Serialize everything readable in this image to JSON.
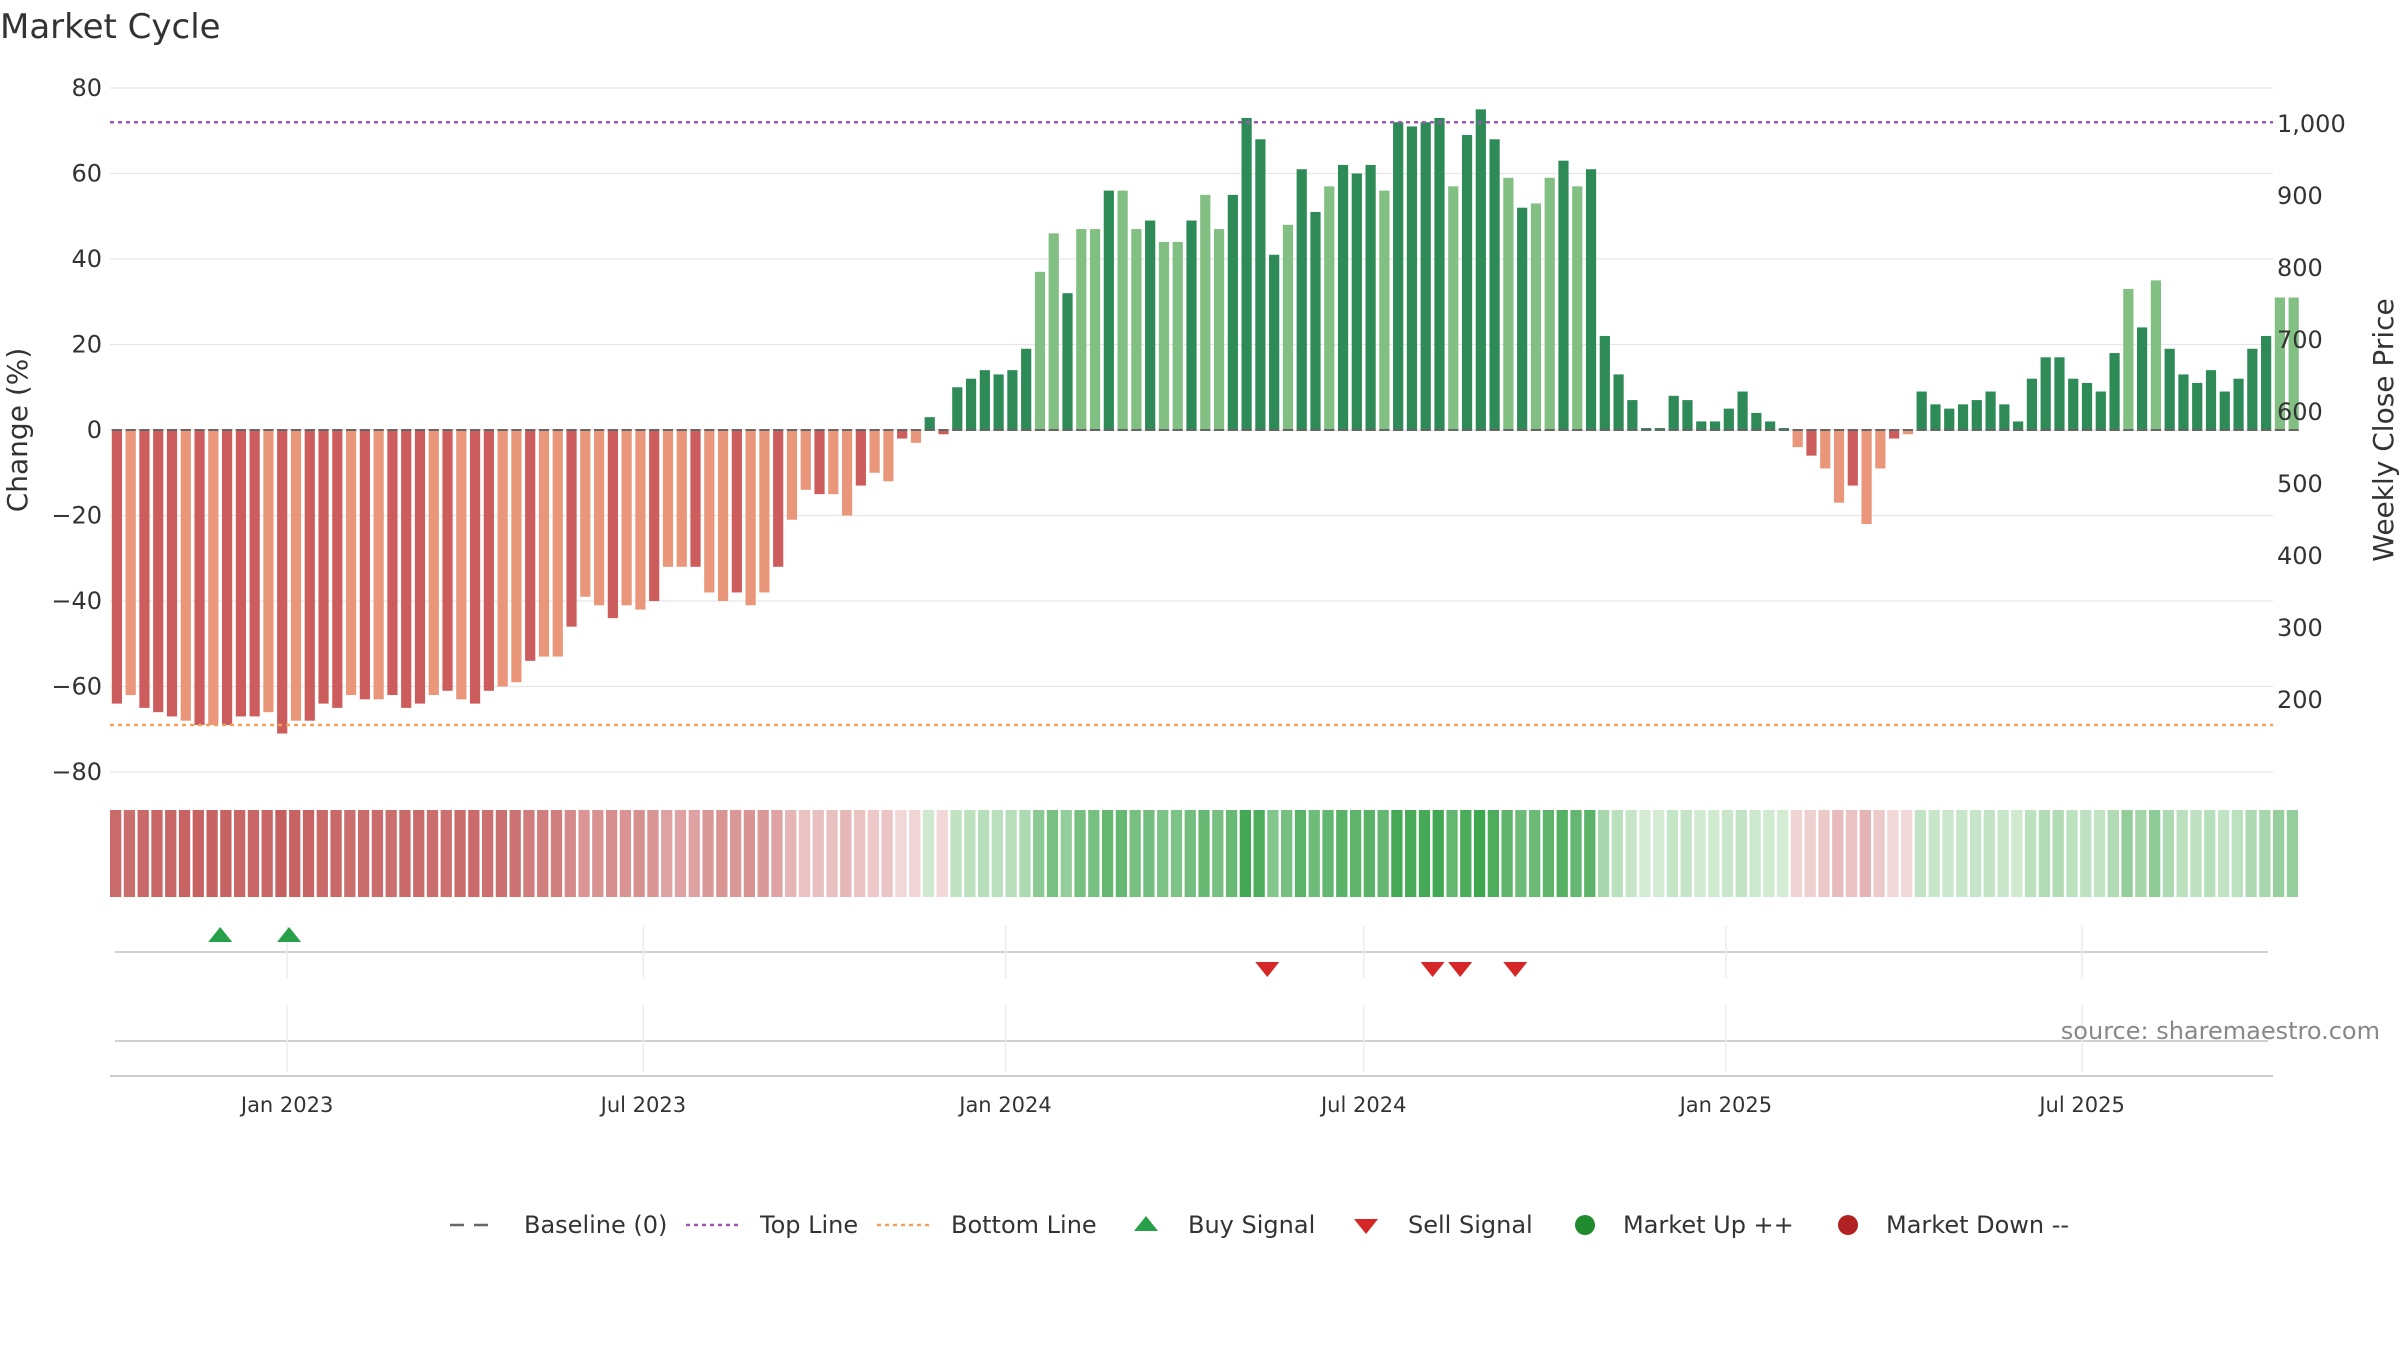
{
  "chart_data": {
    "type": "bar",
    "title": "Market Cycle",
    "ylabel_left": "Change (%)",
    "ylabel_right": "Weekly Close Price",
    "ylim_left": [
      -80,
      80
    ],
    "yticks_left": [
      "80",
      "60",
      "40",
      "20",
      "0",
      "−20",
      "−40",
      "−60",
      "−80"
    ],
    "ylim_right": [
      100,
      1050
    ],
    "yticks_right": [
      "1,000",
      "900",
      "800",
      "700",
      "600",
      "500",
      "400",
      "300",
      "200"
    ],
    "x_start": "2022-10-03",
    "x_end": "2025-10-06",
    "x_tick_labels": [
      {
        "date": "2023-01-01",
        "label": "Jan 2023"
      },
      {
        "date": "2023-07-01",
        "label": "Jul 2023"
      },
      {
        "date": "2024-01-01",
        "label": "Jan 2024"
      },
      {
        "date": "2024-07-01",
        "label": "Jul 2024"
      },
      {
        "date": "2025-01-01",
        "label": "Jan 2025"
      },
      {
        "date": "2025-07-01",
        "label": "Jul 2025"
      }
    ],
    "top_line": 72,
    "bottom_line": -69,
    "week_start": "2022-10-03",
    "values": [
      -64,
      -62,
      -65,
      -66,
      -67,
      -68,
      -69,
      -69,
      -69,
      -67,
      -67,
      -66,
      -71,
      -68,
      -68,
      -64,
      -65,
      -62,
      -63,
      -63,
      -62,
      -65,
      -64,
      -62,
      -61,
      -63,
      -64,
      -61,
      -60,
      -59,
      -54,
      -53,
      -53,
      -46,
      -39,
      -41,
      -44,
      -41,
      -42,
      -40,
      -32,
      -32,
      -32,
      -38,
      -40,
      -38,
      -41,
      -38,
      -32,
      -21,
      -14,
      -15,
      -15,
      -20,
      -13,
      -10,
      -12,
      -2,
      -3,
      3,
      -1,
      10,
      12,
      14,
      13,
      14,
      19,
      37,
      46,
      32,
      47,
      47,
      56,
      56,
      47,
      49,
      44,
      44,
      49,
      55,
      47,
      55,
      73,
      68,
      41,
      48,
      61,
      51,
      57,
      62,
      60,
      62,
      56,
      72,
      71,
      72,
      73,
      57,
      69,
      75,
      68,
      59,
      52,
      53,
      59,
      63,
      57,
      61,
      22,
      13,
      7,
      0,
      0,
      8,
      7,
      2,
      2,
      5,
      9,
      4,
      2,
      0,
      -4,
      -6,
      -9,
      -17,
      -13,
      -22,
      -9,
      -2,
      -1,
      9,
      6,
      5,
      6,
      7,
      9,
      6,
      2,
      12,
      17,
      17,
      12,
      11,
      9,
      18,
      33,
      24,
      35,
      19,
      13,
      11,
      14,
      9,
      12,
      19,
      22,
      31,
      31
    ],
    "heatmap_values": [
      -64,
      -62,
      -65,
      -66,
      -67,
      -68,
      -69,
      -69,
      -69,
      -67,
      -67,
      -66,
      -71,
      -68,
      -68,
      -64,
      -65,
      -62,
      -63,
      -63,
      -62,
      -65,
      -64,
      -62,
      -61,
      -63,
      -64,
      -61,
      -60,
      -59,
      -54,
      -53,
      -53,
      -46,
      -39,
      -41,
      -44,
      -41,
      -42,
      -40,
      -32,
      -32,
      -32,
      -38,
      -40,
      -38,
      -41,
      -38,
      -32,
      -21,
      -14,
      -15,
      -15,
      -20,
      -13,
      -10,
      -12,
      -2,
      -3,
      3,
      -1,
      10,
      12,
      14,
      13,
      14,
      19,
      37,
      46,
      32,
      47,
      47,
      56,
      56,
      47,
      49,
      44,
      44,
      49,
      55,
      47,
      55,
      73,
      68,
      41,
      48,
      61,
      51,
      57,
      62,
      60,
      62,
      56,
      72,
      71,
      72,
      73,
      57,
      69,
      75,
      68,
      59,
      52,
      53,
      59,
      63,
      57,
      61,
      22,
      13,
      7,
      0,
      0,
      8,
      7,
      2,
      2,
      5,
      9,
      4,
      2,
      0,
      -4,
      -6,
      -9,
      -17,
      -13,
      -22,
      -9,
      -2,
      -1,
      9,
      6,
      5,
      6,
      7,
      9,
      6,
      2,
      12,
      17,
      17,
      12,
      11,
      9,
      18,
      33,
      24,
      35,
      19,
      13,
      11,
      14,
      9,
      12,
      19,
      22,
      31,
      31
    ],
    "buy_signals": [
      "2022-11-28",
      "2023-01-02"
    ],
    "sell_signals": [
      "2024-05-13",
      "2024-08-05",
      "2024-08-19",
      "2024-09-16"
    ],
    "legend": [
      {
        "label": "Baseline (0)",
        "kind": "dash",
        "color": "#666666"
      },
      {
        "label": "Top Line",
        "kind": "dot",
        "color": "#9b59b6"
      },
      {
        "label": "Bottom Line",
        "kind": "dot",
        "color": "#f0a05a"
      },
      {
        "label": "Buy Signal",
        "kind": "up",
        "color": "#27a049"
      },
      {
        "label": "Sell Signal",
        "kind": "down",
        "color": "#d62728"
      },
      {
        "label": "Market Up ++",
        "kind": "circle",
        "color": "#1f8a2e"
      },
      {
        "label": "Market Down --",
        "kind": "circle",
        "color": "#b22222"
      }
    ],
    "source": "source: sharemaestro.com",
    "colors": {
      "pos_strong": "#2e8b57",
      "pos_weak": "#82bf82",
      "neg_strong": "#cd5c5c",
      "neg_weak": "#e9967a",
      "top_line": "#9b59b6",
      "bottom_line": "#f0a05a",
      "buy": "#27a049",
      "sell": "#d62728"
    }
  }
}
